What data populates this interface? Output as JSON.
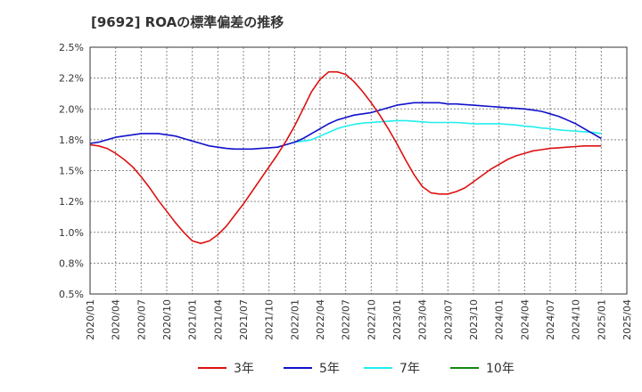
{
  "chart_data": {
    "type": "line",
    "title": "[9692]  ROAの標準偏差の推移",
    "xlabel": "",
    "ylabel": "",
    "ylim": [
      0.5,
      2.5
    ],
    "yticks": [
      {
        "value": 0.5,
        "label": "0.5%"
      },
      {
        "value": 0.75,
        "label": "0.8%"
      },
      {
        "value": 1.0,
        "label": "1.0%"
      },
      {
        "value": 1.25,
        "label": "1.2%"
      },
      {
        "value": 1.5,
        "label": "1.5%"
      },
      {
        "value": 1.75,
        "label": "1.8%"
      },
      {
        "value": 2.0,
        "label": "2.0%"
      },
      {
        "value": 2.25,
        "label": "2.2%"
      },
      {
        "value": 2.5,
        "label": "2.5%"
      }
    ],
    "xticks": [
      "2020/01",
      "2020/04",
      "2020/07",
      "2020/10",
      "2021/01",
      "2021/04",
      "2021/07",
      "2021/10",
      "2022/01",
      "2022/04",
      "2022/07",
      "2022/10",
      "2023/01",
      "2023/04",
      "2023/07",
      "2023/10",
      "2024/01",
      "2024/04",
      "2024/07",
      "2024/10",
      "2025/01",
      "2025/04"
    ],
    "grid": true,
    "legend_position": "bottom",
    "series": [
      {
        "name": "3年",
        "color": "#dd1111",
        "x": [
          "2020/01",
          "2020/02",
          "2020/03",
          "2020/04",
          "2020/05",
          "2020/06",
          "2020/07",
          "2020/08",
          "2020/09",
          "2020/10",
          "2020/11",
          "2020/12",
          "2021/01",
          "2021/02",
          "2021/03",
          "2021/04",
          "2021/05",
          "2021/06",
          "2021/07",
          "2021/08",
          "2021/09",
          "2021/10",
          "2021/11",
          "2021/12",
          "2022/01",
          "2022/02",
          "2022/03",
          "2022/04",
          "2022/05",
          "2022/06",
          "2022/07",
          "2022/08",
          "2022/09",
          "2022/10",
          "2022/11",
          "2022/12",
          "2023/01",
          "2023/02",
          "2023/03",
          "2023/04",
          "2023/05",
          "2023/06",
          "2023/07",
          "2023/08",
          "2023/09",
          "2023/10",
          "2023/11",
          "2023/12",
          "2024/01",
          "2024/02",
          "2024/03",
          "2024/04",
          "2024/05",
          "2024/06",
          "2024/07",
          "2024/08",
          "2024/09",
          "2024/10",
          "2024/11",
          "2024/12",
          "2025/01"
        ],
        "values": [
          1.71,
          1.7,
          1.68,
          1.64,
          1.59,
          1.53,
          1.45,
          1.36,
          1.26,
          1.17,
          1.08,
          1.0,
          0.93,
          0.91,
          0.93,
          0.98,
          1.05,
          1.14,
          1.23,
          1.33,
          1.43,
          1.53,
          1.63,
          1.74,
          1.86,
          2.0,
          2.14,
          2.24,
          2.3,
          2.3,
          2.28,
          2.22,
          2.14,
          2.05,
          1.95,
          1.84,
          1.72,
          1.59,
          1.47,
          1.37,
          1.32,
          1.31,
          1.31,
          1.33,
          1.36,
          1.41,
          1.46,
          1.51,
          1.55,
          1.59,
          1.62,
          1.64,
          1.66,
          1.67,
          1.68,
          1.685,
          1.69,
          1.695,
          1.7,
          1.7,
          1.7
        ]
      },
      {
        "name": "5年",
        "color": "#1111cc",
        "x": [
          "2020/01",
          "2020/02",
          "2020/03",
          "2020/04",
          "2020/05",
          "2020/06",
          "2020/07",
          "2020/08",
          "2020/09",
          "2020/10",
          "2020/11",
          "2020/12",
          "2021/01",
          "2021/02",
          "2021/03",
          "2021/04",
          "2021/05",
          "2021/06",
          "2021/07",
          "2021/08",
          "2021/09",
          "2021/10",
          "2021/11",
          "2021/12",
          "2022/01",
          "2022/02",
          "2022/03",
          "2022/04",
          "2022/05",
          "2022/06",
          "2022/07",
          "2022/08",
          "2022/09",
          "2022/10",
          "2022/11",
          "2022/12",
          "2023/01",
          "2023/02",
          "2023/03",
          "2023/04",
          "2023/05",
          "2023/06",
          "2023/07",
          "2023/08",
          "2023/09",
          "2023/10",
          "2023/11",
          "2023/12",
          "2024/01",
          "2024/02",
          "2024/03",
          "2024/04",
          "2024/05",
          "2024/06",
          "2024/07",
          "2024/08",
          "2024/09",
          "2024/10",
          "2024/11",
          "2024/12",
          "2025/01"
        ],
        "values": [
          1.72,
          1.73,
          1.75,
          1.77,
          1.78,
          1.79,
          1.8,
          1.8,
          1.8,
          1.79,
          1.78,
          1.76,
          1.74,
          1.72,
          1.7,
          1.69,
          1.68,
          1.675,
          1.675,
          1.675,
          1.68,
          1.685,
          1.69,
          1.71,
          1.73,
          1.76,
          1.8,
          1.84,
          1.88,
          1.91,
          1.93,
          1.95,
          1.96,
          1.97,
          1.99,
          2.01,
          2.03,
          2.04,
          2.05,
          2.05,
          2.05,
          2.05,
          2.04,
          2.04,
          2.035,
          2.03,
          2.025,
          2.02,
          2.015,
          2.01,
          2.005,
          2.0,
          1.99,
          1.98,
          1.96,
          1.94,
          1.91,
          1.88,
          1.84,
          1.8,
          1.76
        ]
      },
      {
        "name": "7年",
        "color": "#22eeee",
        "x": [
          "2022/01",
          "2022/02",
          "2022/03",
          "2022/04",
          "2022/05",
          "2022/06",
          "2022/07",
          "2022/08",
          "2022/09",
          "2022/10",
          "2022/11",
          "2022/12",
          "2023/01",
          "2023/02",
          "2023/03",
          "2023/04",
          "2023/05",
          "2023/06",
          "2023/07",
          "2023/08",
          "2023/09",
          "2023/10",
          "2023/11",
          "2023/12",
          "2024/01",
          "2024/02",
          "2024/03",
          "2024/04",
          "2024/05",
          "2024/06",
          "2024/07",
          "2024/08",
          "2024/09",
          "2024/10",
          "2024/11",
          "2024/12",
          "2025/01"
        ],
        "values": [
          1.73,
          1.74,
          1.75,
          1.78,
          1.81,
          1.84,
          1.86,
          1.875,
          1.885,
          1.89,
          1.895,
          1.9,
          1.905,
          1.905,
          1.9,
          1.895,
          1.89,
          1.89,
          1.89,
          1.89,
          1.885,
          1.88,
          1.88,
          1.88,
          1.88,
          1.875,
          1.87,
          1.86,
          1.855,
          1.845,
          1.84,
          1.83,
          1.825,
          1.82,
          1.815,
          1.81,
          1.8
        ]
      },
      {
        "name": "10年",
        "color": "#118811",
        "x": [],
        "values": []
      }
    ]
  }
}
